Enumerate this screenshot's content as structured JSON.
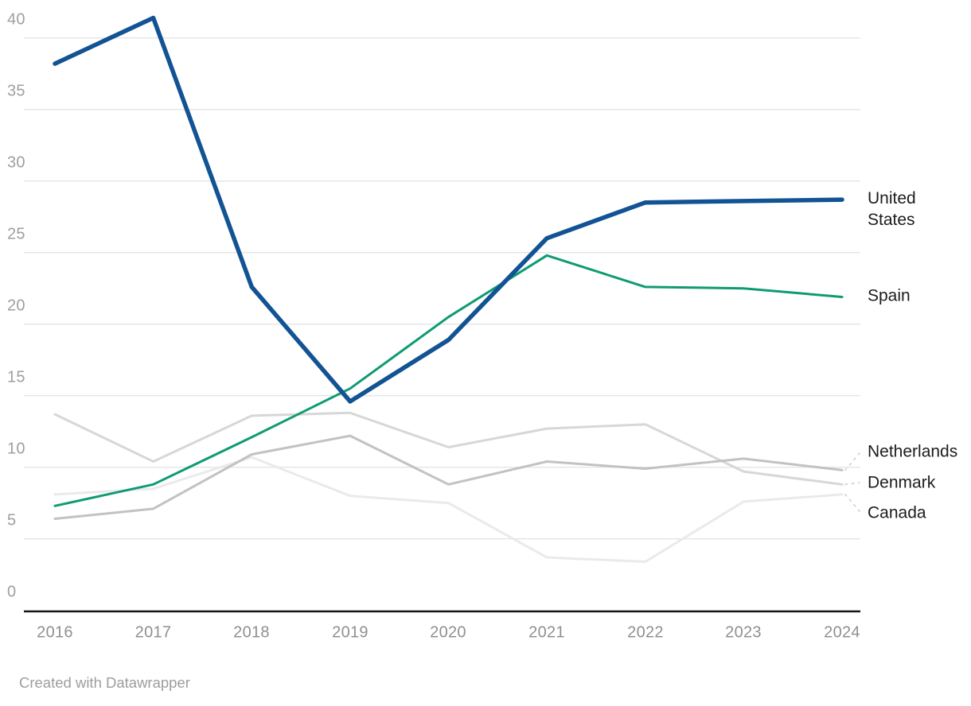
{
  "footer": {
    "credit": "Created with Datawrapper"
  },
  "axis": {
    "y_labels": [
      "40",
      "35",
      "30",
      "25",
      "20",
      "15",
      "10",
      "5",
      "0"
    ],
    "x_labels": [
      "2016",
      "2017",
      "2018",
      "2019",
      "2020",
      "2021",
      "2022",
      "2023",
      "2024"
    ]
  },
  "chart_data": {
    "type": "line",
    "title": "",
    "xlabel": "",
    "ylabel": "",
    "x": [
      2016,
      2017,
      2018,
      2019,
      2020,
      2021,
      2022,
      2023,
      2024
    ],
    "ylim": [
      0,
      41.5
    ],
    "y_ticks": [
      0,
      5,
      10,
      15,
      20,
      25,
      30,
      35,
      40
    ],
    "grid": "horizontal-gridlines",
    "legend_position": "labels-right-of-line-ends",
    "gridline_color": "#e4e4e4",
    "baseline_color": "#151515",
    "connector_color": "#cfcfcf",
    "series": [
      {
        "name": "United States",
        "color": "#125394",
        "stroke_width": 5.5,
        "values": [
          38.2,
          41.4,
          22.6,
          14.6,
          18.9,
          26.0,
          28.5,
          28.6,
          28.7
        ]
      },
      {
        "name": "Spain",
        "color": "#0e9b73",
        "stroke_width": 3,
        "values": [
          7.3,
          8.8,
          12.1,
          15.5,
          20.5,
          24.8,
          22.6,
          22.5,
          21.9
        ]
      },
      {
        "name": "Netherlands",
        "color": "#c2c2c2",
        "stroke_width": 3,
        "values": [
          6.4,
          7.1,
          10.9,
          12.2,
          8.8,
          10.4,
          9.9,
          10.6,
          9.8
        ]
      },
      {
        "name": "Denmark",
        "color": "#d7d7d7",
        "stroke_width": 3,
        "values": [
          13.7,
          10.4,
          13.6,
          13.8,
          11.4,
          12.7,
          13.0,
          9.7,
          8.8
        ]
      },
      {
        "name": "Canada",
        "color": "#eaeaea",
        "stroke_width": 3,
        "values": [
          8.1,
          8.5,
          10.7,
          8.0,
          7.5,
          3.7,
          3.4,
          7.6,
          8.1
        ]
      }
    ]
  }
}
